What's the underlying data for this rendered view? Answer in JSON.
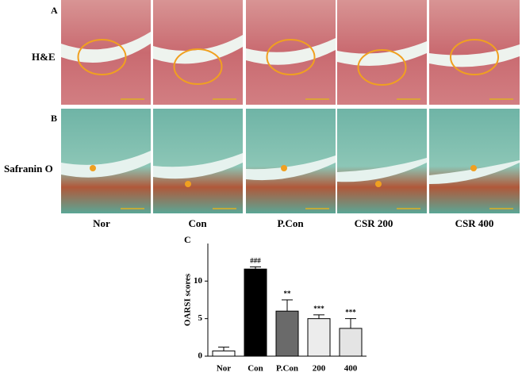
{
  "figure": {
    "panel_labels": [
      "A",
      "B",
      "C"
    ],
    "row_labels": [
      "H&E",
      "Safranin O"
    ],
    "column_labels": [
      "Nor",
      "Con",
      "P.Con",
      "CSR 200",
      "CSR 400"
    ]
  },
  "chart_data": {
    "type": "bar",
    "y_label": "OARSI scores",
    "categories": [
      "Nor",
      "Con",
      "P.Con",
      "200",
      "400"
    ],
    "values": [
      0.7,
      11.6,
      6.0,
      5.0,
      3.7
    ],
    "errors": [
      0.5,
      0.3,
      1.5,
      0.5,
      1.3
    ],
    "significance": [
      null,
      "###",
      "**",
      "***",
      "***"
    ],
    "colors": [
      "#ffffff",
      "#000000",
      "#6a6a6a",
      "#ececec",
      "#e4e4e4"
    ],
    "ylim": [
      0,
      15
    ],
    "yticks": [
      0,
      5,
      10
    ]
  }
}
